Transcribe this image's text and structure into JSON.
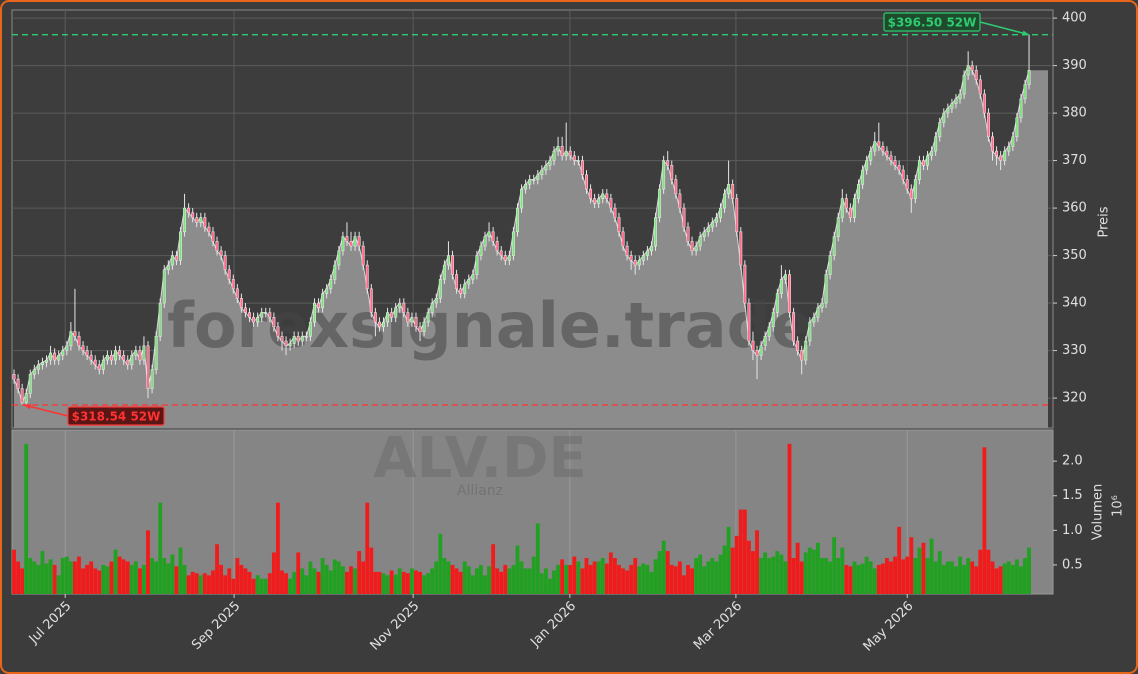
{
  "chart_data": {
    "type": "candlestick",
    "watermark": "forexsignale.trade",
    "symbol": "ALV.DE",
    "name": "Allianz",
    "y_label": "Preis",
    "volume_label": "Volumen",
    "volume_exponent": "10⁶",
    "up_color": "#22a022",
    "down_color": "#f01c1c",
    "grid": true,
    "xlim": [
      -0.5,
      255.9
    ],
    "xticks": [
      {
        "value": 12.6,
        "label": "Jul 2025"
      },
      {
        "value": 54.2,
        "label": "Sep 2025"
      },
      {
        "value": 98.3,
        "label": "Nov 2025"
      },
      {
        "value": 136.9,
        "label": "Jan 2026"
      },
      {
        "value": 177.8,
        "label": "Mar 2026"
      },
      {
        "value": 220,
        "label": "May 2026"
      }
    ],
    "ylim": [
      313.7,
      401.7
    ],
    "yticks": [
      320,
      330,
      340,
      350,
      360,
      370,
      380,
      390,
      400
    ],
    "volume_ylim": [
      0.08,
      2.45
    ],
    "volume_yticks": [
      0.5,
      {
        "value": 1,
        "label": "1.0"
      },
      1.5,
      {
        "value": 2,
        "label": "2.0"
      }
    ],
    "annotations": [
      {
        "value": 396.5,
        "label": "$396.50 52W",
        "color": "#2ecc71"
      },
      {
        "value": 318.54,
        "label": "$318.54 52W",
        "color": "#ff3333"
      }
    ],
    "open": [
      325,
      324,
      322,
      319,
      321,
      325,
      326,
      327,
      327.5,
      328,
      329.5,
      328,
      329,
      330,
      331,
      334,
      333,
      331,
      330,
      329,
      328,
      327,
      326,
      328,
      329,
      328,
      330,
      329,
      328,
      327,
      329,
      330,
      328,
      331,
      322,
      326,
      333,
      340,
      347,
      348,
      350,
      349,
      355,
      360,
      359,
      358,
      357,
      358,
      356,
      355,
      353,
      351,
      350,
      347,
      345,
      343,
      341,
      339,
      338,
      337,
      336,
      337,
      338,
      338,
      337,
      335,
      333,
      332,
      331,
      331.5,
      333,
      332,
      333,
      333,
      336,
      340,
      339,
      342,
      343,
      345,
      348,
      351,
      354,
      353,
      352,
      354,
      352,
      348,
      343,
      338,
      336,
      335,
      336,
      338,
      337,
      339,
      340,
      338,
      336,
      337,
      335,
      334,
      336,
      338,
      340,
      341,
      345,
      348,
      350,
      346,
      343,
      342,
      344,
      345,
      346,
      350,
      352,
      354,
      355,
      353,
      351,
      350,
      349,
      350,
      355,
      360,
      364,
      365,
      366,
      366,
      367,
      368,
      369,
      370,
      372,
      373,
      371,
      372,
      371,
      370,
      370,
      367,
      364,
      362,
      361,
      362,
      363,
      362,
      360,
      358,
      355,
      352,
      350,
      349,
      348,
      349,
      350,
      351,
      352,
      358,
      364,
      370,
      369,
      366,
      363,
      360,
      356,
      353,
      351,
      352,
      354,
      355,
      356,
      357,
      358,
      360,
      363,
      365,
      362,
      355,
      348,
      340,
      332,
      330,
      329,
      331,
      333,
      335,
      338,
      342,
      345,
      346,
      338,
      332,
      330,
      328,
      332,
      336,
      337,
      339,
      340,
      346,
      350,
      354,
      358,
      362,
      360,
      358,
      362,
      365,
      368,
      370,
      372,
      374,
      373,
      372,
      371,
      370,
      369,
      368,
      366,
      364,
      362,
      366,
      370,
      369,
      371,
      372,
      375,
      378,
      380,
      381,
      382,
      383,
      384,
      388,
      390,
      389,
      387,
      384,
      380,
      375,
      372,
      371,
      370,
      372,
      373,
      375,
      379,
      383,
      386
    ],
    "high": [
      326,
      325,
      323,
      322,
      326,
      327,
      328,
      328.5,
      329,
      331,
      330.5,
      330,
      331,
      332,
      336,
      343,
      334,
      332,
      331,
      330,
      329,
      328,
      329,
      330,
      330,
      331,
      331,
      330,
      329,
      330,
      331,
      331,
      333,
      332,
      327,
      334,
      341,
      348,
      349,
      351,
      351,
      356,
      363,
      361,
      360,
      359,
      359,
      359,
      357,
      356,
      354,
      352,
      351,
      348,
      346,
      344,
      342,
      340,
      339,
      338,
      338,
      339,
      339,
      339,
      338,
      336,
      334,
      333,
      332.5,
      334,
      334,
      334,
      334,
      337,
      341,
      341,
      343,
      344,
      346,
      349,
      352,
      355,
      357,
      355,
      355,
      355,
      353,
      349,
      344,
      339,
      337,
      337,
      339,
      339,
      340,
      341,
      341,
      339,
      338,
      338,
      336,
      337,
      339,
      341,
      342,
      346,
      349,
      353,
      351,
      347,
      344,
      345,
      346,
      347,
      351,
      353,
      355,
      357,
      356,
      354,
      352,
      351,
      351,
      356,
      361,
      365,
      366,
      367,
      367,
      368,
      369,
      370,
      371,
      373,
      375,
      375,
      378,
      373,
      372,
      371,
      371,
      368,
      365,
      363,
      363,
      364,
      364,
      363,
      361,
      359,
      356,
      353,
      351,
      350,
      350,
      351,
      352,
      353,
      359,
      365,
      371,
      372,
      370,
      367,
      364,
      361,
      357,
      354,
      353,
      355,
      356,
      357,
      358,
      359,
      361,
      364,
      370,
      366,
      363,
      356,
      349,
      341,
      334,
      331,
      332,
      334,
      336,
      339,
      343,
      348,
      347,
      347,
      339,
      333,
      331,
      333,
      337,
      338,
      340,
      341,
      347,
      351,
      355,
      359,
      364,
      363,
      361,
      363,
      366,
      369,
      371,
      373,
      376,
      378,
      374,
      373,
      372,
      371,
      370,
      369,
      367,
      365,
      367,
      371,
      371,
      372,
      373,
      376,
      379,
      381,
      382,
      383,
      384,
      385,
      389,
      393,
      391,
      390,
      388,
      385,
      381,
      376,
      373,
      372,
      373,
      374,
      376,
      380,
      384,
      387,
      396.5
    ],
    "low": [
      323,
      321,
      318.54,
      318.6,
      320,
      324,
      325,
      326,
      326.5,
      327,
      327,
      327,
      328,
      329,
      330,
      332,
      330,
      329,
      328,
      327,
      326,
      325,
      325,
      327,
      327,
      327,
      328,
      327,
      326,
      326,
      328,
      327,
      327,
      320,
      321,
      325,
      332,
      339,
      346,
      347,
      348,
      348,
      354,
      358,
      357,
      356,
      356,
      355,
      354,
      352,
      350,
      349,
      346,
      344,
      342,
      340,
      338,
      337,
      336,
      335,
      335,
      336,
      337,
      336,
      334,
      332,
      330,
      329,
      330,
      330.5,
      331,
      331,
      332,
      332,
      335,
      338,
      338,
      341,
      342,
      344,
      347,
      350,
      352,
      351,
      351,
      351,
      347,
      342,
      337,
      333,
      334,
      334,
      335,
      336,
      336,
      338,
      337,
      335,
      335,
      334,
      332,
      333,
      335,
      337,
      339,
      340,
      344,
      347,
      345,
      342,
      341,
      341,
      343,
      344,
      345,
      349,
      351,
      353,
      352,
      350,
      349,
      348,
      348,
      349,
      354,
      359,
      363,
      364,
      365,
      365,
      366,
      367,
      368,
      369,
      371,
      370,
      370,
      370,
      369,
      369,
      366,
      363,
      361,
      360,
      360,
      361,
      361,
      359,
      357,
      354,
      351,
      349,
      347,
      346,
      347,
      348,
      349,
      350,
      351,
      357,
      363,
      368,
      365,
      362,
      359,
      355,
      352,
      350,
      350,
      351,
      353,
      354,
      355,
      356,
      357,
      359,
      362,
      361,
      354,
      347,
      339,
      331,
      328,
      324,
      328,
      330,
      332,
      334,
      337,
      341,
      344,
      337,
      331,
      329,
      325,
      327,
      331,
      335,
      336,
      338,
      339,
      345,
      349,
      353,
      357,
      359,
      357,
      357,
      361,
      364,
      367,
      369,
      371,
      372,
      371,
      370,
      369,
      368,
      367,
      365,
      363,
      359,
      361,
      365,
      368,
      368,
      370,
      371,
      374,
      377,
      379,
      380,
      381,
      382,
      383,
      387,
      388,
      386,
      383,
      379,
      374,
      370,
      369,
      368,
      369,
      371,
      372,
      374,
      378,
      382,
      385
    ],
    "close": [
      324,
      322,
      319,
      321,
      325,
      326,
      327,
      327.5,
      328,
      329.5,
      328,
      329,
      330,
      331,
      334,
      333,
      331,
      330,
      329,
      328,
      327,
      326,
      328,
      329,
      328,
      330,
      329,
      328,
      327,
      329,
      330,
      328,
      331,
      322,
      326,
      333,
      340,
      347,
      348,
      350,
      349,
      355,
      360,
      359,
      358,
      357,
      358,
      356,
      355,
      353,
      351,
      350,
      347,
      345,
      343,
      341,
      339,
      338,
      337,
      336,
      337,
      338,
      338,
      337,
      335,
      333,
      332,
      331,
      331.5,
      333,
      332,
      333,
      333,
      336,
      340,
      339,
      342,
      343,
      345,
      348,
      351,
      354,
      353,
      352,
      354,
      352,
      348,
      343,
      338,
      336,
      335,
      336,
      338,
      337,
      339,
      340,
      338,
      336,
      337,
      335,
      334,
      336,
      338,
      340,
      341,
      345,
      348,
      350,
      346,
      343,
      342,
      344,
      345,
      346,
      350,
      352,
      354,
      355,
      353,
      351,
      350,
      349,
      350,
      355,
      360,
      364,
      365,
      366,
      366,
      367,
      368,
      369,
      370,
      372,
      373,
      371,
      372,
      371,
      370,
      370,
      367,
      364,
      362,
      361,
      362,
      363,
      362,
      360,
      358,
      355,
      352,
      350,
      349,
      348,
      349,
      350,
      351,
      352,
      358,
      364,
      370,
      369,
      366,
      363,
      360,
      356,
      353,
      351,
      352,
      354,
      355,
      356,
      357,
      358,
      360,
      363,
      365,
      362,
      355,
      348,
      340,
      332,
      330,
      329,
      331,
      333,
      335,
      338,
      342,
      345,
      346,
      338,
      332,
      330,
      328,
      332,
      336,
      337,
      339,
      340,
      346,
      350,
      354,
      358,
      362,
      360,
      358,
      362,
      365,
      368,
      370,
      372,
      374,
      373,
      372,
      371,
      370,
      369,
      368,
      366,
      364,
      362,
      366,
      370,
      369,
      371,
      372,
      375,
      378,
      380,
      381,
      382,
      383,
      384,
      388,
      390,
      389,
      387,
      384,
      380,
      375,
      372,
      371,
      370,
      372,
      373,
      375,
      379,
      383,
      386,
      389
    ],
    "volume": [
      0.72,
      0.55,
      0.45,
      2.25,
      0.6,
      0.55,
      0.5,
      0.7,
      0.52,
      0.58,
      0.5,
      0.35,
      0.6,
      0.62,
      0.55,
      0.55,
      0.62,
      0.45,
      0.5,
      0.55,
      0.45,
      0.42,
      0.5,
      0.48,
      0.55,
      0.72,
      0.62,
      0.58,
      0.55,
      0.5,
      0.55,
      0.45,
      0.5,
      1.0,
      0.6,
      0.55,
      1.4,
      0.6,
      0.52,
      0.65,
      0.48,
      0.75,
      0.5,
      0.35,
      0.4,
      0.38,
      0.35,
      0.38,
      0.35,
      0.42,
      0.8,
      0.5,
      0.35,
      0.45,
      0.3,
      0.6,
      0.5,
      0.45,
      0.4,
      0.3,
      0.35,
      0.3,
      0.3,
      0.38,
      0.68,
      1.4,
      0.42,
      0.38,
      0.3,
      0.4,
      0.68,
      0.45,
      0.35,
      0.55,
      0.45,
      0.4,
      0.6,
      0.5,
      0.42,
      0.58,
      0.55,
      0.48,
      0.4,
      0.48,
      0.45,
      0.7,
      0.55,
      1.4,
      0.75,
      0.4,
      0.4,
      0.38,
      0.35,
      0.42,
      0.36,
      0.45,
      0.4,
      0.38,
      0.45,
      0.42,
      0.4,
      0.35,
      0.38,
      0.45,
      0.55,
      0.95,
      0.6,
      0.55,
      0.5,
      0.45,
      0.4,
      0.55,
      0.48,
      0.35,
      0.45,
      0.5,
      0.35,
      0.48,
      0.8,
      0.45,
      0.4,
      0.5,
      0.45,
      0.5,
      0.78,
      0.55,
      0.45,
      0.45,
      0.62,
      1.1,
      0.38,
      0.45,
      0.3,
      0.42,
      0.5,
      0.58,
      0.5,
      0.5,
      0.62,
      0.55,
      0.45,
      0.6,
      0.5,
      0.55,
      0.55,
      0.6,
      0.52,
      0.68,
      0.6,
      0.5,
      0.45,
      0.42,
      0.5,
      0.6,
      0.48,
      0.52,
      0.5,
      0.4,
      0.58,
      0.7,
      0.85,
      0.7,
      0.5,
      0.48,
      0.55,
      0.35,
      0.5,
      0.45,
      0.6,
      0.65,
      0.48,
      0.55,
      0.6,
      0.55,
      0.65,
      0.78,
      1.05,
      0.75,
      0.92,
      1.3,
      1.3,
      0.85,
      0.7,
      1.0,
      0.6,
      0.68,
      0.6,
      0.62,
      0.7,
      0.65,
      0.55,
      2.25,
      0.6,
      0.82,
      0.55,
      0.68,
      0.75,
      0.72,
      0.82,
      0.6,
      0.6,
      0.55,
      0.9,
      0.6,
      0.75,
      0.5,
      0.48,
      0.55,
      0.5,
      0.52,
      0.62,
      0.55,
      0.45,
      0.5,
      0.52,
      0.6,
      0.55,
      0.62,
      1.05,
      0.58,
      0.62,
      0.9,
      0.6,
      0.75,
      0.82,
      0.6,
      0.88,
      0.55,
      0.7,
      0.5,
      0.55,
      0.55,
      0.48,
      0.62,
      0.5,
      0.6,
      0.55,
      0.48,
      0.72,
      2.2,
      0.72,
      0.55,
      0.45,
      0.48,
      0.52,
      0.55,
      0.5,
      0.58,
      0.48,
      0.6,
      0.75
    ]
  }
}
